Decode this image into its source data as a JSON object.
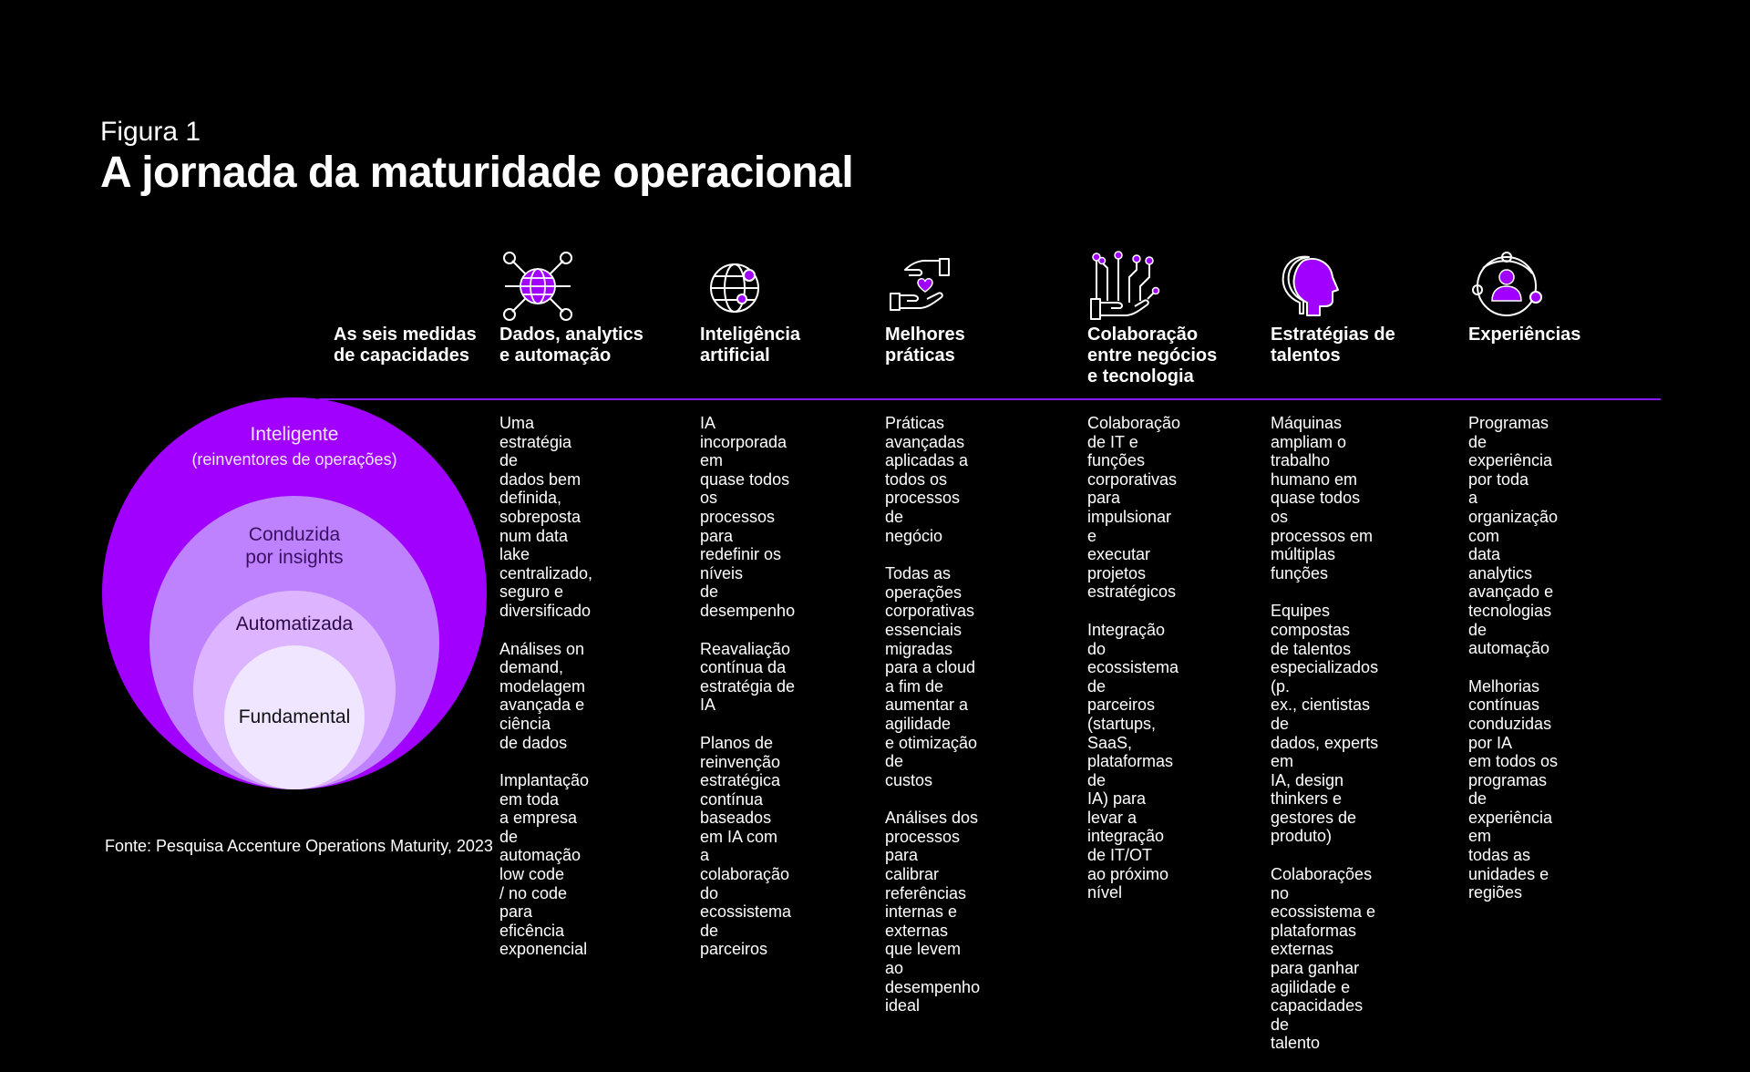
{
  "figure": {
    "label": "Figura 1",
    "title": "A jornada da maturidade operacional"
  },
  "row_label": [
    "As seis medidas",
    "de capacidades"
  ],
  "colors": {
    "accent": "#8a16ff",
    "outer_circle": "#a100ff",
    "second_circle": "#be82ff",
    "third_circle": "#dcb4ff",
    "inner_circle": "#f0e6ff"
  },
  "levels": [
    {
      "title": "Inteligente",
      "subtitle": "(reinventores de operações)"
    },
    {
      "title": "Conduzida",
      "subtitle": "por insights"
    },
    {
      "title": "Automatizada"
    },
    {
      "title": "Fundamental"
    }
  ],
  "columns": [
    {
      "icon": "data-globe-network-icon",
      "heading": [
        "Dados, analytics",
        "e automação"
      ],
      "paragraphs": [
        [
          "Uma estratégia de",
          "dados bem definida,",
          "sobreposta num data",
          "lake centralizado,",
          "seguro e",
          "diversificado"
        ],
        [
          "Análises on demand,",
          "modelagem",
          "avançada e ciência",
          "de dados"
        ],
        [
          "Implantação em toda",
          "a empresa de",
          "automação low code",
          "/ no code para",
          "eficência",
          "exponencial"
        ]
      ]
    },
    {
      "icon": "ai-globe-icon",
      "heading": [
        "Inteligência",
        "artificial"
      ],
      "paragraphs": [
        [
          "IA incorporada em",
          "quase todos os",
          "processos para",
          "redefinir os níveis",
          "de desempenho"
        ],
        [
          "Reavaliação",
          "contínua da",
          "estratégia de IA"
        ],
        [
          "Planos de reinvenção",
          "estratégica contínua",
          "baseados em IA com",
          "a colaboração do",
          "ecossistema de",
          "parceiros"
        ]
      ]
    },
    {
      "icon": "hands-heart-icon",
      "heading": [
        "Melhores",
        "práticas"
      ],
      "paragraphs": [
        [
          "Práticas avançadas",
          "aplicadas a todos os",
          "processos de",
          "negócio"
        ],
        [
          "Todas as operações",
          "corporativas",
          "essenciais migradas",
          "para a cloud a fim de",
          "aumentar a agilidade",
          "e otimização de",
          "custos"
        ],
        [
          "Análises dos",
          "processos para",
          "calibrar referências",
          "internas e externas",
          "que levem ao",
          "desempenho ideal"
        ]
      ]
    },
    {
      "icon": "hand-circuit-icon",
      "heading": [
        "Colaboração",
        "entre negócios",
        "e tecnologia"
      ],
      "paragraphs": [
        [
          "Colaboração de IT e",
          "funções corporativas",
          "para impulsionar e",
          "executar projetos",
          "estratégicos"
        ],
        [
          "Integração do",
          "ecossistema de",
          "parceiros (startups,",
          "SaaS, plataformas de",
          "IA) para levar a",
          "integração de IT/OT",
          "ao próximo nível"
        ]
      ]
    },
    {
      "icon": "human-head-profile-icon",
      "heading": [
        "Estratégias de",
        "talentos"
      ],
      "paragraphs": [
        [
          "Máquinas ampliam o",
          "trabalho humano em",
          "quase todos os",
          "processos em",
          "múltiplas funções"
        ],
        [
          "Equipes compostas",
          "de talentos",
          "especializados (p.",
          "ex., cientistas de",
          "dados, experts em",
          "IA, design thinkers e",
          "gestores de produto)"
        ],
        [
          "Colaborações no",
          "ecossistema e",
          "plataformas externas",
          "para ganhar",
          "agilidade e",
          "capacidades de",
          "talento"
        ]
      ]
    },
    {
      "icon": "person-orbit-icon",
      "heading": [
        "Experiências"
      ],
      "paragraphs": [
        [
          "Programas de",
          "experiência por toda",
          "a organização com",
          "data analytics",
          "avançado e",
          "tecnologias de",
          "automação"
        ],
        [
          "Melhorias contínuas",
          "conduzidas por IA",
          "em todos os",
          "programas de",
          "experiência em",
          "todas as unidades e",
          "regiões"
        ]
      ]
    }
  ],
  "source": "Fonte: Pesquisa Accenture Operations Maturity, 2023"
}
